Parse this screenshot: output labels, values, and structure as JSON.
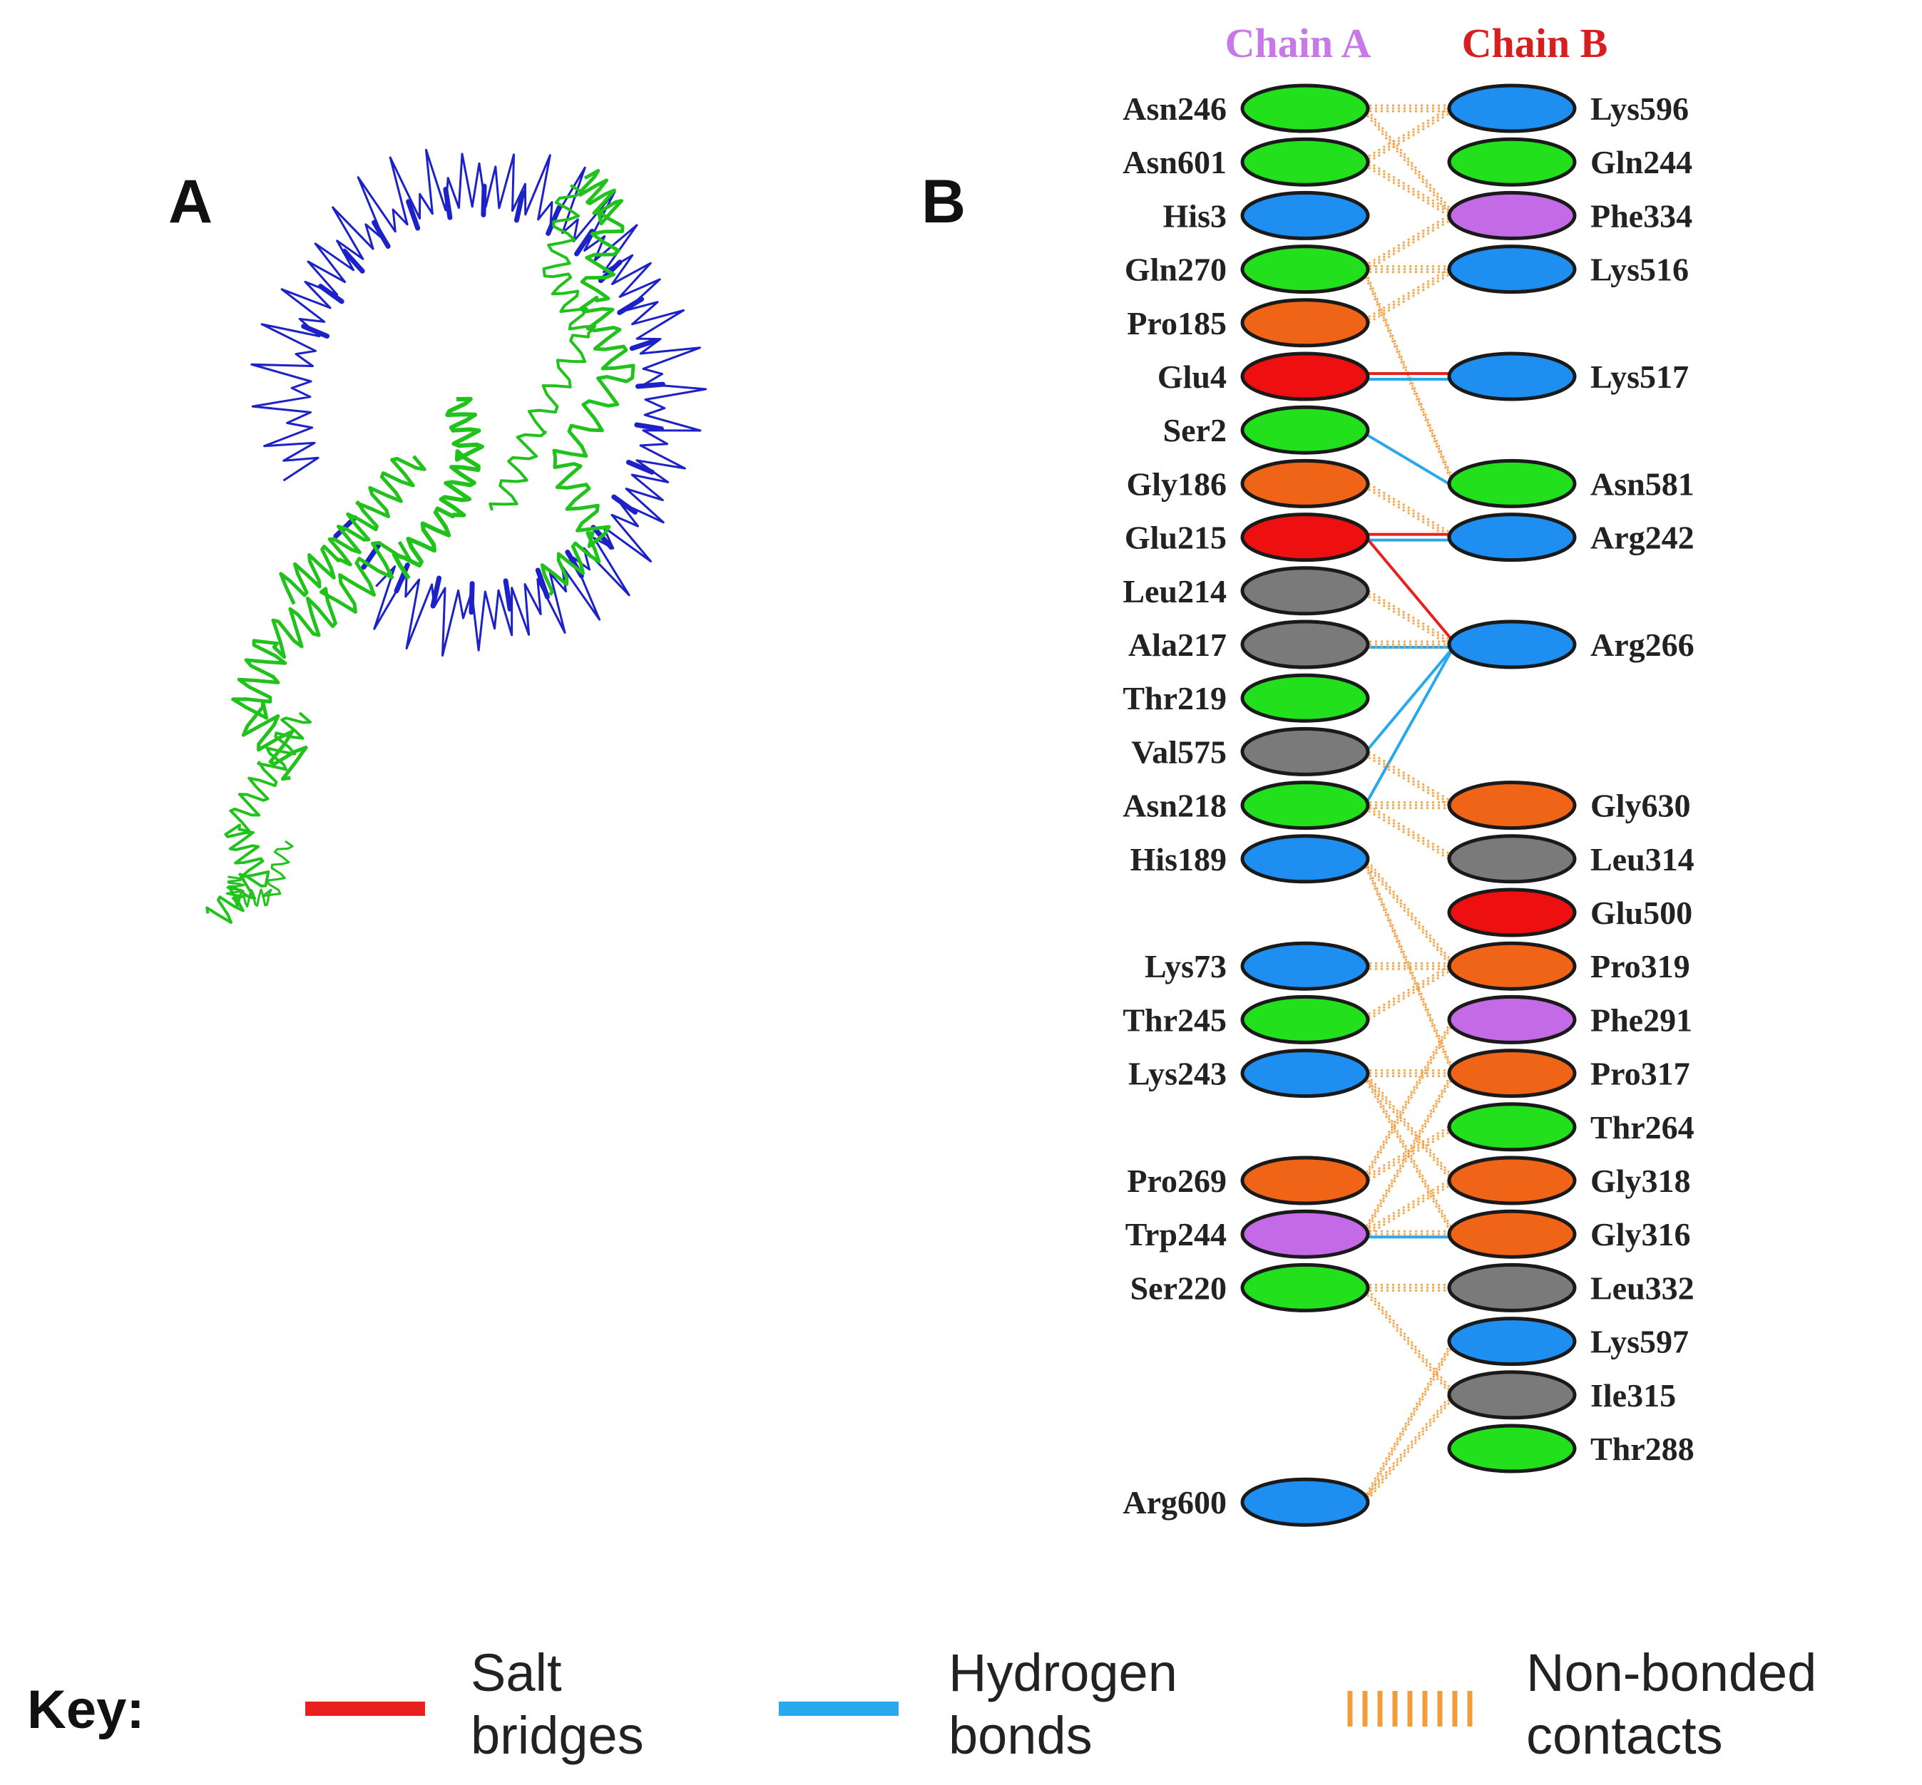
{
  "panels": {
    "a_label": "A",
    "b_label": "B"
  },
  "chain_a": {
    "title": "Chain A",
    "color": "#c879e8",
    "residues": [
      {
        "name": "Asn246",
        "type": "neutral",
        "row": 0
      },
      {
        "name": "Asn601",
        "type": "neutral",
        "row": 1
      },
      {
        "name": "His3",
        "type": "positive",
        "row": 2
      },
      {
        "name": "Gln270",
        "type": "neutral",
        "row": 3
      },
      {
        "name": "Pro185",
        "type": "pg",
        "row": 4
      },
      {
        "name": "Glu4",
        "type": "negative",
        "row": 5
      },
      {
        "name": "Ser2",
        "type": "neutral",
        "row": 6
      },
      {
        "name": "Gly186",
        "type": "pg",
        "row": 7
      },
      {
        "name": "Glu215",
        "type": "negative",
        "row": 8
      },
      {
        "name": "Leu214",
        "type": "aliphatic",
        "row": 9
      },
      {
        "name": "Ala217",
        "type": "aliphatic",
        "row": 10
      },
      {
        "name": "Thr219",
        "type": "neutral",
        "row": 11
      },
      {
        "name": "Val575",
        "type": "aliphatic",
        "row": 12
      },
      {
        "name": "Asn218",
        "type": "neutral",
        "row": 13
      },
      {
        "name": "His189",
        "type": "positive",
        "row": 14
      },
      {
        "name": "Lys73",
        "type": "positive",
        "row": 16
      },
      {
        "name": "Thr245",
        "type": "neutral",
        "row": 17
      },
      {
        "name": "Lys243",
        "type": "positive",
        "row": 18
      },
      {
        "name": "Pro269",
        "type": "pg",
        "row": 20
      },
      {
        "name": "Trp244",
        "type": "aromatic",
        "row": 21
      },
      {
        "name": "Ser220",
        "type": "neutral",
        "row": 22
      },
      {
        "name": "Arg600",
        "type": "positive",
        "row": 26
      }
    ]
  },
  "chain_b": {
    "title": "Chain B",
    "color": "#d81e1e",
    "residues": [
      {
        "name": "Lys596",
        "type": "positive",
        "row": 0
      },
      {
        "name": "Gln244",
        "type": "neutral",
        "row": 1
      },
      {
        "name": "Phe334",
        "type": "aromatic",
        "row": 2
      },
      {
        "name": "Lys516",
        "type": "positive",
        "row": 3
      },
      {
        "name": "Lys517",
        "type": "positive",
        "row": 5
      },
      {
        "name": "Asn581",
        "type": "neutral",
        "row": 7
      },
      {
        "name": "Arg242",
        "type": "positive",
        "row": 8
      },
      {
        "name": "Arg266",
        "type": "positive",
        "row": 10
      },
      {
        "name": "Gly630",
        "type": "pg",
        "row": 13
      },
      {
        "name": "Leu314",
        "type": "aliphatic",
        "row": 14
      },
      {
        "name": "Glu500",
        "type": "negative",
        "row": 15
      },
      {
        "name": "Pro319",
        "type": "pg",
        "row": 16
      },
      {
        "name": "Phe291",
        "type": "aromatic",
        "row": 17
      },
      {
        "name": "Pro317",
        "type": "pg",
        "row": 18
      },
      {
        "name": "Thr264",
        "type": "neutral",
        "row": 19
      },
      {
        "name": "Gly318",
        "type": "pg",
        "row": 20
      },
      {
        "name": "Gly316",
        "type": "pg",
        "row": 21
      },
      {
        "name": "Leu332",
        "type": "aliphatic",
        "row": 22
      },
      {
        "name": "Lys597",
        "type": "positive",
        "row": 23
      },
      {
        "name": "Ile315",
        "type": "aliphatic",
        "row": 24
      },
      {
        "name": "Thr288",
        "type": "neutral",
        "row": 25
      }
    ]
  },
  "residue_colors": {
    "neutral": "#22e01c",
    "positive": "#1e8ef0",
    "negative": "#ee1010",
    "pg": "#f06418",
    "aliphatic": "#7a7a7a",
    "aromatic": "#c46ae6"
  },
  "interactions": [
    {
      "a": "Asn246",
      "b": "Phe334",
      "kind": "nonbonded"
    },
    {
      "a": "Asn246",
      "b": "Lys596",
      "kind": "nonbonded"
    },
    {
      "a": "Asn601",
      "b": "Phe334",
      "kind": "nonbonded"
    },
    {
      "a": "Asn601",
      "b": "Lys596",
      "kind": "nonbonded"
    },
    {
      "a": "Gln270",
      "b": "Phe334",
      "kind": "nonbonded"
    },
    {
      "a": "Gln270",
      "b": "Lys516",
      "kind": "nonbonded"
    },
    {
      "a": "Gln270",
      "b": "Asn581",
      "kind": "nonbonded"
    },
    {
      "a": "Pro185",
      "b": "Lys516",
      "kind": "nonbonded"
    },
    {
      "a": "Glu4",
      "b": "Lys517",
      "kind": "salt"
    },
    {
      "a": "Glu4",
      "b": "Lys517",
      "kind": "hbond"
    },
    {
      "a": "Ser2",
      "b": "Asn581",
      "kind": "hbond"
    },
    {
      "a": "Gly186",
      "b": "Arg242",
      "kind": "nonbonded"
    },
    {
      "a": "Glu215",
      "b": "Arg242",
      "kind": "salt"
    },
    {
      "a": "Glu215",
      "b": "Arg242",
      "kind": "hbond"
    },
    {
      "a": "Glu215",
      "b": "Arg266",
      "kind": "salt"
    },
    {
      "a": "Leu214",
      "b": "Arg266",
      "kind": "nonbonded"
    },
    {
      "a": "Ala217",
      "b": "Arg266",
      "kind": "hbond"
    },
    {
      "a": "Ala217",
      "b": "Arg266",
      "kind": "nonbonded"
    },
    {
      "a": "Asn218",
      "b": "Arg266",
      "kind": "hbond"
    },
    {
      "a": "Val575",
      "b": "Arg266",
      "kind": "hbond"
    },
    {
      "a": "Val575",
      "b": "Gly630",
      "kind": "nonbonded"
    },
    {
      "a": "Asn218",
      "b": "Gly630",
      "kind": "nonbonded"
    },
    {
      "a": "Asn218",
      "b": "Leu314",
      "kind": "nonbonded"
    },
    {
      "a": "His189",
      "b": "Pro319",
      "kind": "nonbonded"
    },
    {
      "a": "His189",
      "b": "Pro317",
      "kind": "nonbonded"
    },
    {
      "a": "Lys73",
      "b": "Pro319",
      "kind": "nonbonded"
    },
    {
      "a": "Thr245",
      "b": "Pro319",
      "kind": "nonbonded"
    },
    {
      "a": "Lys243",
      "b": "Pro317",
      "kind": "nonbonded"
    },
    {
      "a": "Lys243",
      "b": "Gly318",
      "kind": "nonbonded"
    },
    {
      "a": "Lys243",
      "b": "Gly316",
      "kind": "nonbonded"
    },
    {
      "a": "Pro269",
      "b": "Phe291",
      "kind": "nonbonded"
    },
    {
      "a": "Pro269",
      "b": "Thr264",
      "kind": "nonbonded"
    },
    {
      "a": "Trp244",
      "b": "Gly316",
      "kind": "nonbonded"
    },
    {
      "a": "Trp244",
      "b": "Gly316",
      "kind": "hbond"
    },
    {
      "a": "Trp244",
      "b": "Gly318",
      "kind": "nonbonded"
    },
    {
      "a": "Trp244",
      "b": "Pro317",
      "kind": "nonbonded"
    },
    {
      "a": "Ser220",
      "b": "Leu332",
      "kind": "nonbonded"
    },
    {
      "a": "Ser220",
      "b": "Ile315",
      "kind": "nonbonded"
    },
    {
      "a": "Arg600",
      "b": "Ile315",
      "kind": "nonbonded"
    },
    {
      "a": "Arg600",
      "b": "Lys597",
      "kind": "nonbonded"
    }
  ],
  "key": {
    "title": "Key:",
    "items": [
      {
        "kind": "salt",
        "line1": "Salt",
        "line2": "bridges",
        "color": "#e8201e"
      },
      {
        "kind": "hbond",
        "line1": "Hydrogen",
        "line2": "bonds",
        "color": "#29a8ee"
      },
      {
        "kind": "nonbonded",
        "line1": "Non-bonded",
        "line2": "contacts",
        "color": "#f29c3a"
      }
    ]
  },
  "structure_colors": {
    "chain_a": "#22c21c",
    "chain_b": "#1c22c8"
  }
}
